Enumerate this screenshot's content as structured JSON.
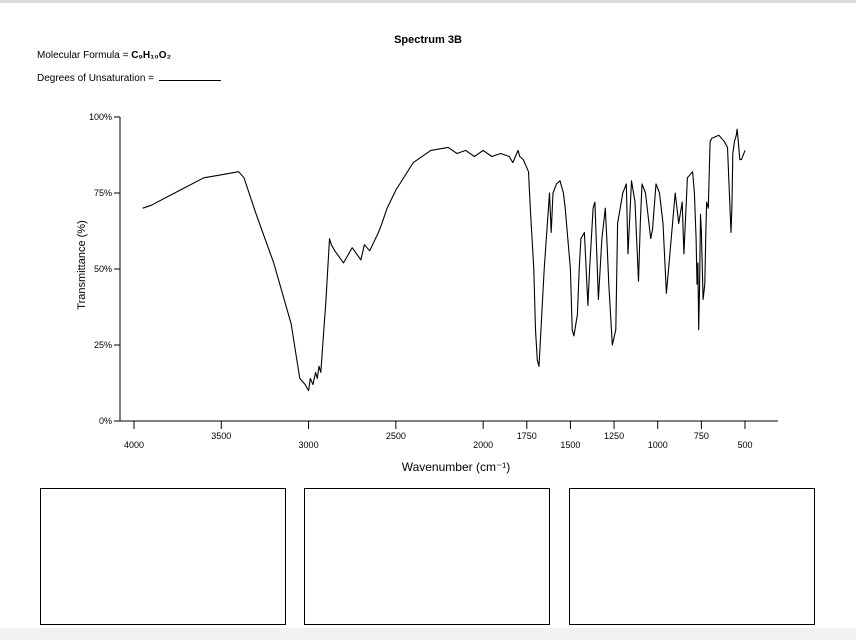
{
  "page": {
    "title": "Spectrum 3B",
    "formula_label": "Molecular Formula = ",
    "formula_value": "C₉H₁₀O₂",
    "dou_label": "Degrees of Unsaturation = "
  },
  "chart_data": {
    "type": "line",
    "title": "Spectrum 3B",
    "xlabel": "Wavenumber (cm⁻¹)",
    "ylabel": "Transmittance (%)",
    "xlim": [
      4000,
      500
    ],
    "ylim": [
      0,
      100
    ],
    "x_reversed": true,
    "grid": false,
    "legend": "none",
    "line_color": "#000000",
    "xticks": [
      {
        "value": 4000,
        "label": "4000"
      },
      {
        "value": 3500,
        "label": "3500"
      },
      {
        "value": 3000,
        "label": "3000"
      },
      {
        "value": 2500,
        "label": "2500"
      },
      {
        "value": 2000,
        "label": "2000"
      },
      {
        "value": 1750,
        "label": "1750"
      },
      {
        "value": 1500,
        "label": "1500"
      },
      {
        "value": 1250,
        "label": "1250"
      },
      {
        "value": 1000,
        "label": "1000"
      },
      {
        "value": 750,
        "label": "750"
      },
      {
        "value": 500,
        "label": "500"
      }
    ],
    "yticks": [
      {
        "value": 0,
        "label": "0%"
      },
      {
        "value": 25,
        "label": "25%"
      },
      {
        "value": 50,
        "label": "50%"
      },
      {
        "value": 75,
        "label": "75%"
      },
      {
        "value": 100,
        "label": "100%"
      }
    ],
    "series": [
      {
        "x": [
          3950,
          3900,
          3800,
          3700,
          3600,
          3500,
          3400,
          3370,
          3300,
          3200,
          3100,
          3050,
          3020,
          3000,
          2990,
          2975,
          2960,
          2950,
          2940,
          2930,
          2900,
          2880,
          2870,
          2850,
          2800,
          2750,
          2700,
          2680,
          2650,
          2600,
          2580,
          2550,
          2500,
          2400,
          2300,
          2200,
          2150,
          2100,
          2050,
          2000,
          1950,
          1900,
          1850,
          1830,
          1800,
          1790,
          1770,
          1740,
          1730,
          1710,
          1700,
          1690,
          1680,
          1650,
          1620,
          1610,
          1600,
          1580,
          1560,
          1540,
          1530,
          1500,
          1490,
          1480,
          1460,
          1450,
          1440,
          1420,
          1400,
          1390,
          1370,
          1360,
          1340,
          1320,
          1300,
          1290,
          1280,
          1260,
          1240,
          1230,
          1200,
          1180,
          1170,
          1150,
          1130,
          1110,
          1100,
          1090,
          1070,
          1040,
          1030,
          1010,
          990,
          970,
          950,
          930,
          900,
          880,
          860,
          850,
          830,
          800,
          790,
          780,
          775,
          770,
          765,
          760,
          755,
          750,
          740,
          730,
          725,
          720,
          710,
          700,
          690,
          650,
          620,
          600,
          580,
          575,
          570,
          560,
          550,
          545,
          540,
          530,
          520,
          500
        ],
        "y": [
          70,
          71,
          74,
          77,
          80,
          81,
          82,
          80,
          68,
          52,
          32,
          14,
          12,
          10,
          14,
          12,
          16,
          14,
          18,
          16,
          40,
          60,
          58,
          56,
          52,
          57,
          53,
          58,
          56,
          62,
          65,
          70,
          76,
          85,
          89,
          90,
          88,
          89,
          87,
          89,
          87,
          88,
          87,
          85,
          89,
          87,
          86,
          82,
          70,
          50,
          30,
          20,
          18,
          50,
          75,
          62,
          75,
          78,
          79,
          75,
          70,
          50,
          30,
          28,
          35,
          50,
          60,
          62,
          38,
          50,
          70,
          72,
          40,
          60,
          70,
          58,
          45,
          25,
          30,
          65,
          75,
          78,
          55,
          79,
          72,
          46,
          65,
          78,
          75,
          60,
          63,
          78,
          75,
          65,
          42,
          55,
          75,
          65,
          72,
          55,
          80,
          82,
          75,
          60,
          45,
          52,
          30,
          45,
          68,
          62,
          40,
          45,
          60,
          72,
          70,
          92,
          93,
          94,
          92,
          90,
          62,
          70,
          88,
          92,
          94,
          96,
          93,
          86,
          86,
          89
        ]
      }
    ]
  },
  "answer_boxes": [
    {
      "name": "answer-box-1"
    },
    {
      "name": "answer-box-2"
    },
    {
      "name": "answer-box-3"
    }
  ]
}
